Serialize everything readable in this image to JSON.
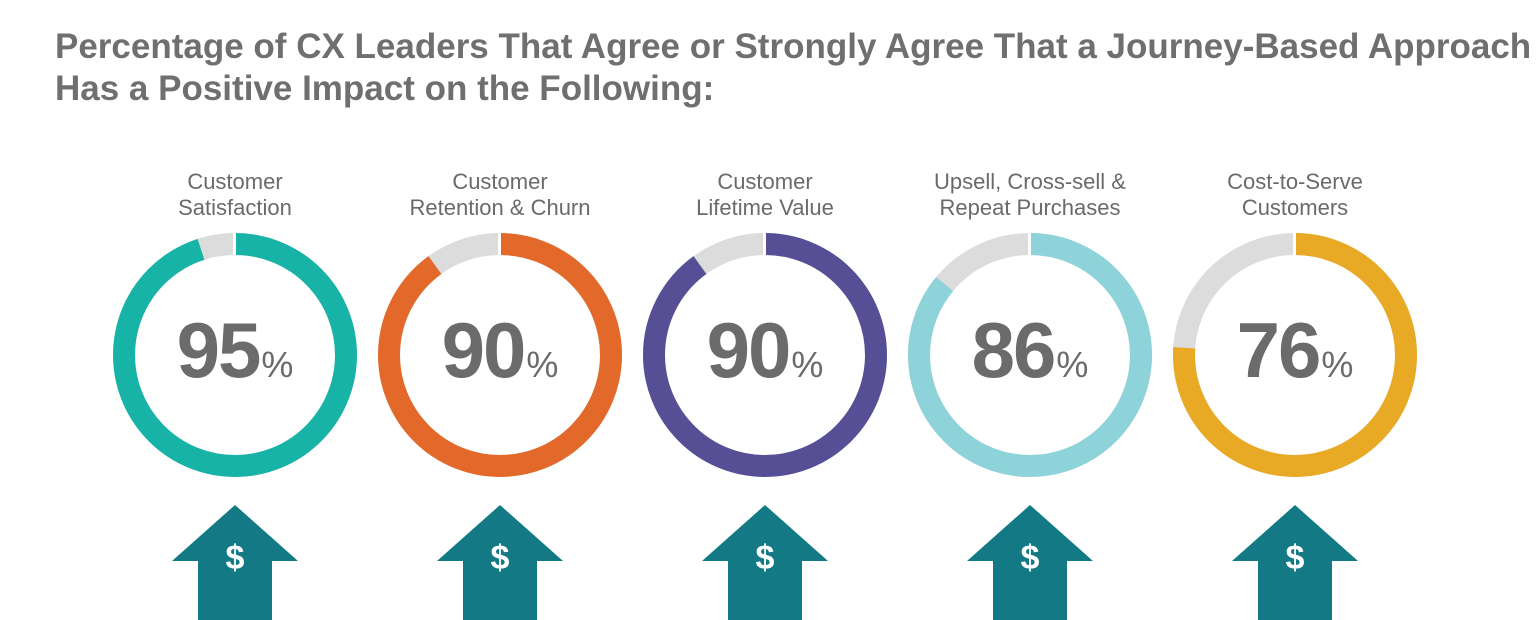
{
  "title": {
    "line1": "Percentage of CX Leaders That Agree or Strongly Agree That a Journey-Based Approach",
    "line2": "Has a Positive Impact on the Following:"
  },
  "colors": {
    "title": "#6f6f6f",
    "label": "#6a6a6a",
    "value_text": "#6b6b6b",
    "ring_remainder": "#dcdcdc",
    "arrow": "#137a85",
    "series": [
      "#17b3a7",
      "#e2692a",
      "#564f96",
      "#8dd3d9",
      "#e8aa24"
    ]
  },
  "icons": {
    "arrow": "arrow-up-dollar-icon"
  },
  "chart_data": {
    "type": "donut",
    "unit": "%",
    "max": 100,
    "items": [
      {
        "label_lines": [
          "Customer",
          "Satisfaction"
        ],
        "value": 95,
        "percent_sign": "%",
        "icon_text": "$"
      },
      {
        "label_lines": [
          "Customer",
          "Retention & Churn"
        ],
        "value": 90,
        "percent_sign": "%",
        "icon_text": "$"
      },
      {
        "label_lines": [
          "Customer",
          "Lifetime Value"
        ],
        "value": 90,
        "percent_sign": "%",
        "icon_text": "$"
      },
      {
        "label_lines": [
          "Upsell, Cross-sell &",
          "Repeat Purchases"
        ],
        "value": 86,
        "percent_sign": "%",
        "icon_text": "$"
      },
      {
        "label_lines": [
          "Cost-to-Serve",
          "Customers"
        ],
        "value": 76,
        "percent_sign": "%",
        "icon_text": "$"
      }
    ]
  }
}
